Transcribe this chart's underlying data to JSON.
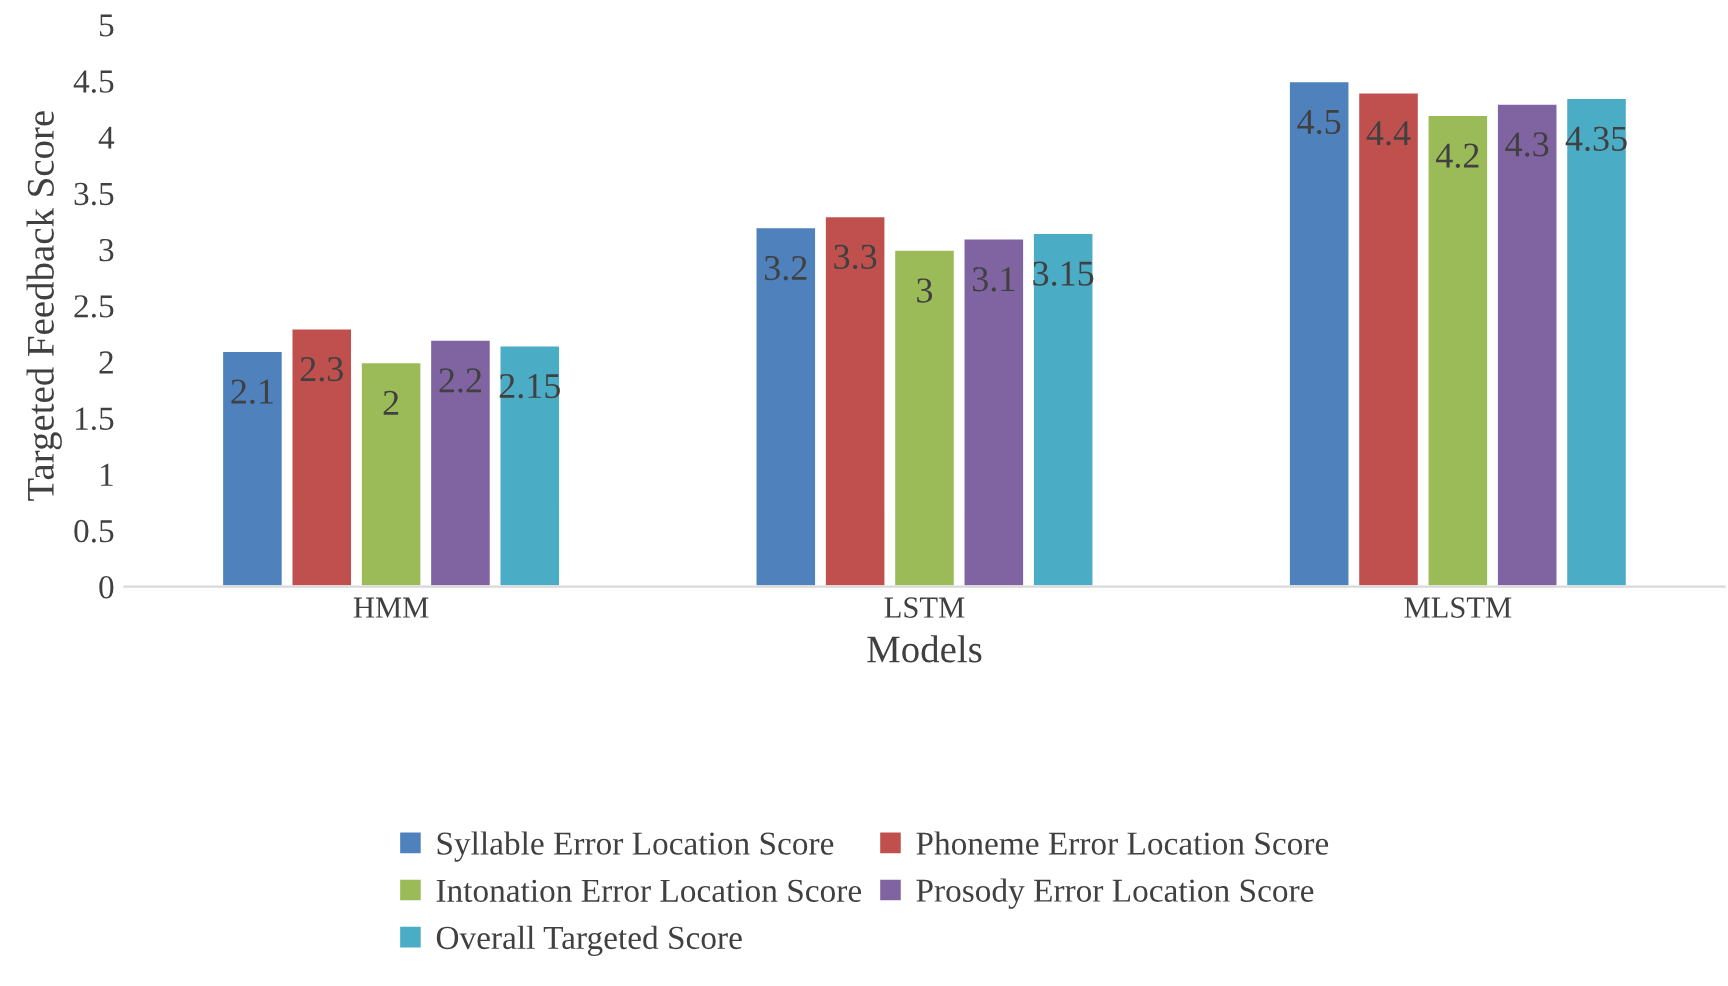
{
  "chart_data": {
    "type": "bar",
    "xlabel": "Models",
    "ylabel": "Targeted Feedback Score",
    "categories": [
      "HMM",
      "LSTM",
      "MLSTM"
    ],
    "series": [
      {
        "name": "Syllable Error Location Score",
        "color": "#4f81bd",
        "values": [
          2.1,
          3.2,
          4.5
        ]
      },
      {
        "name": "Phoneme Error Location Score",
        "color": "#c0504d",
        "values": [
          2.3,
          3.3,
          4.4
        ]
      },
      {
        "name": "Intonation Error Location Score",
        "color": "#9bbb59",
        "values": [
          2,
          3,
          4.2
        ]
      },
      {
        "name": "Prosody Error Location Score",
        "color": "#8064a2",
        "values": [
          2.2,
          3.1,
          4.3
        ]
      },
      {
        "name": "Overall Targeted Score",
        "color": "#4bacc6",
        "values": [
          2.15,
          3.15,
          4.35
        ]
      }
    ],
    "ylim": [
      0,
      5
    ],
    "yticks": [
      0,
      0.5,
      1,
      1.5,
      2,
      2.5,
      3,
      3.5,
      4,
      4.5,
      5
    ],
    "data_labels": true,
    "grid": false,
    "legend": "bottom"
  }
}
